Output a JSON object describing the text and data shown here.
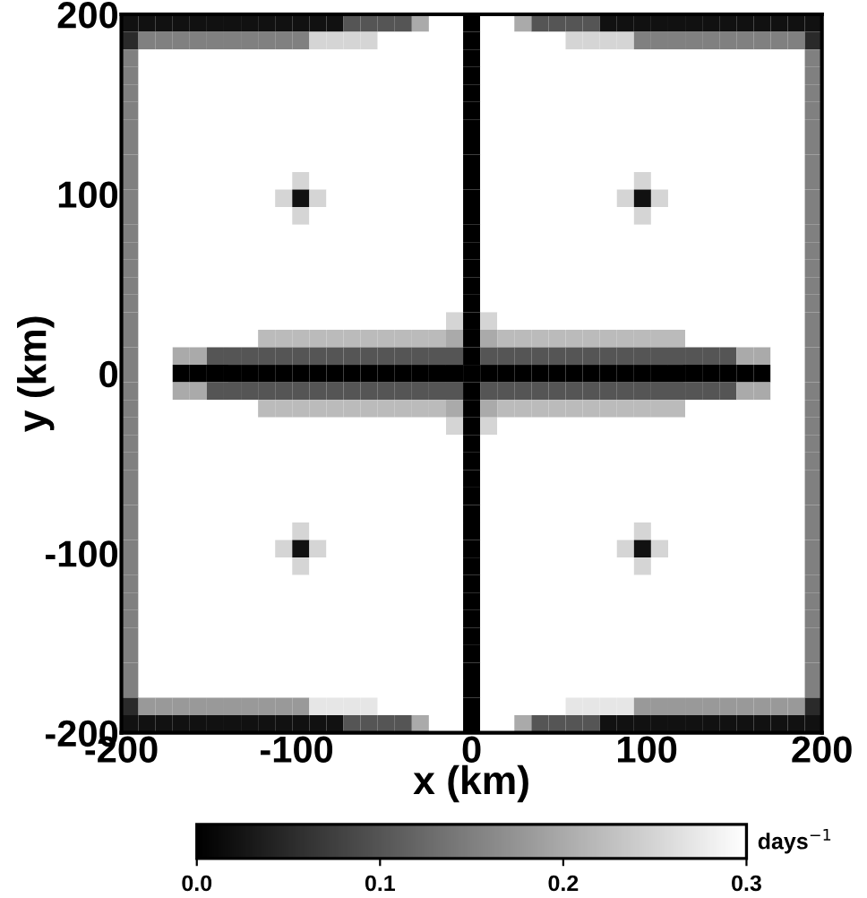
{
  "chart_data": {
    "type": "heatmap",
    "xlabel": "x (km)",
    "ylabel": "y (km)",
    "clabel": "days$^{−1}$",
    "xlim": [
      -200,
      200
    ],
    "ylim": [
      -200,
      200
    ],
    "xticks": [
      -200,
      -100,
      0,
      100,
      200
    ],
    "yticks": [
      -200,
      -100,
      0,
      100,
      200
    ],
    "clim": [
      0,
      0.3
    ],
    "cticks": [
      {
        "value": 0,
        "label": "0.0"
      },
      {
        "value": 0.1,
        "label": "0.1"
      },
      {
        "value": 0.2,
        "label": "0.2"
      },
      {
        "value": 0.3,
        "label": "0.3"
      }
    ],
    "cells": [
      [
        0.02,
        0.02,
        0.02,
        0.02,
        0.02,
        0.02,
        0.02,
        0.02,
        0.02,
        0.02,
        0.02,
        0.02,
        0.02,
        0.1,
        0.1,
        0.1,
        0.1,
        0.2,
        0.3,
        0.3,
        0,
        0.3,
        0.3,
        0.2,
        0.1,
        0.1,
        0.1,
        0.1,
        0.02,
        0.02,
        0.02,
        0.02,
        0.02,
        0.02,
        0.02,
        0.02,
        0.02,
        0.02,
        0.02,
        0.02,
        0.02
      ],
      [
        0.05,
        0.15,
        0.15,
        0.15,
        0.15,
        0.15,
        0.15,
        0.15,
        0.15,
        0.15,
        0.15,
        0.25,
        0.25,
        0.25,
        0.25,
        0.3,
        0.3,
        0.3,
        0.3,
        0.3,
        0,
        0.3,
        0.3,
        0.3,
        0.3,
        0.3,
        0.25,
        0.25,
        0.25,
        0.25,
        0.15,
        0.15,
        0.15,
        0.15,
        0.15,
        0.15,
        0.15,
        0.15,
        0.15,
        0.15,
        0.05
      ],
      [
        0.15,
        0.3,
        0.3,
        0.3,
        0.3,
        0.3,
        0.3,
        0.3,
        0.3,
        0.3,
        0.3,
        0.3,
        0.3,
        0.3,
        0.3,
        0.3,
        0.3,
        0.3,
        0.3,
        0.3,
        0,
        0.3,
        0.3,
        0.3,
        0.3,
        0.3,
        0.3,
        0.3,
        0.3,
        0.3,
        0.3,
        0.3,
        0.3,
        0.3,
        0.3,
        0.3,
        0.3,
        0.3,
        0.3,
        0.3,
        0.15
      ],
      [
        0.15,
        0.3,
        0.3,
        0.3,
        0.3,
        0.3,
        0.3,
        0.3,
        0.3,
        0.3,
        0.3,
        0.3,
        0.3,
        0.3,
        0.3,
        0.3,
        0.3,
        0.3,
        0.3,
        0.3,
        0,
        0.3,
        0.3,
        0.3,
        0.3,
        0.3,
        0.3,
        0.3,
        0.3,
        0.3,
        0.3,
        0.3,
        0.3,
        0.3,
        0.3,
        0.3,
        0.3,
        0.3,
        0.3,
        0.3,
        0.15
      ],
      [
        0.15,
        0.3,
        0.3,
        0.3,
        0.3,
        0.3,
        0.3,
        0.3,
        0.3,
        0.3,
        0.3,
        0.3,
        0.3,
        0.3,
        0.3,
        0.3,
        0.3,
        0.3,
        0.3,
        0.3,
        0,
        0.3,
        0.3,
        0.3,
        0.3,
        0.3,
        0.3,
        0.3,
        0.3,
        0.3,
        0.3,
        0.3,
        0.3,
        0.3,
        0.3,
        0.3,
        0.3,
        0.3,
        0.3,
        0.3,
        0.15
      ],
      [
        0.15,
        0.3,
        0.3,
        0.3,
        0.3,
        0.3,
        0.3,
        0.3,
        0.3,
        0.3,
        0.3,
        0.3,
        0.3,
        0.3,
        0.3,
        0.3,
        0.3,
        0.3,
        0.3,
        0.3,
        0,
        0.3,
        0.3,
        0.3,
        0.3,
        0.3,
        0.3,
        0.3,
        0.3,
        0.3,
        0.3,
        0.3,
        0.3,
        0.3,
        0.3,
        0.3,
        0.3,
        0.3,
        0.3,
        0.3,
        0.15
      ],
      [
        0.15,
        0.3,
        0.3,
        0.3,
        0.3,
        0.3,
        0.3,
        0.3,
        0.3,
        0.3,
        0.3,
        0.3,
        0.3,
        0.3,
        0.3,
        0.3,
        0.3,
        0.3,
        0.3,
        0.3,
        0,
        0.3,
        0.3,
        0.3,
        0.3,
        0.3,
        0.3,
        0.3,
        0.3,
        0.3,
        0.3,
        0.3,
        0.3,
        0.3,
        0.3,
        0.3,
        0.3,
        0.3,
        0.3,
        0.3,
        0.15
      ],
      [
        0.15,
        0.3,
        0.3,
        0.3,
        0.3,
        0.3,
        0.3,
        0.3,
        0.3,
        0.3,
        0.3,
        0.3,
        0.3,
        0.3,
        0.3,
        0.3,
        0.3,
        0.3,
        0.3,
        0.3,
        0,
        0.3,
        0.3,
        0.3,
        0.3,
        0.3,
        0.3,
        0.3,
        0.3,
        0.3,
        0.3,
        0.3,
        0.3,
        0.3,
        0.3,
        0.3,
        0.3,
        0.3,
        0.3,
        0.3,
        0.15
      ],
      [
        0.15,
        0.3,
        0.3,
        0.3,
        0.3,
        0.3,
        0.3,
        0.3,
        0.3,
        0.3,
        0.3,
        0.3,
        0.3,
        0.3,
        0.3,
        0.3,
        0.3,
        0.3,
        0.3,
        0.3,
        0,
        0.3,
        0.3,
        0.3,
        0.3,
        0.3,
        0.3,
        0.3,
        0.3,
        0.3,
        0.3,
        0.3,
        0.3,
        0.3,
        0.3,
        0.3,
        0.3,
        0.3,
        0.3,
        0.3,
        0.15
      ],
      [
        0.15,
        0.3,
        0.3,
        0.3,
        0.3,
        0.3,
        0.3,
        0.3,
        0.3,
        0.3,
        0.25,
        0.3,
        0.3,
        0.3,
        0.3,
        0.3,
        0.3,
        0.3,
        0.3,
        0.3,
        0,
        0.3,
        0.3,
        0.3,
        0.3,
        0.3,
        0.3,
        0.3,
        0.3,
        0.3,
        0.25,
        0.3,
        0.3,
        0.3,
        0.3,
        0.3,
        0.3,
        0.3,
        0.3,
        0.3,
        0.15
      ],
      [
        0.15,
        0.3,
        0.3,
        0.3,
        0.3,
        0.3,
        0.3,
        0.3,
        0.3,
        0.25,
        0.02,
        0.25,
        0.3,
        0.3,
        0.3,
        0.3,
        0.3,
        0.3,
        0.3,
        0.3,
        0,
        0.3,
        0.3,
        0.3,
        0.3,
        0.3,
        0.3,
        0.3,
        0.3,
        0.25,
        0.02,
        0.25,
        0.3,
        0.3,
        0.3,
        0.3,
        0.3,
        0.3,
        0.3,
        0.3,
        0.15
      ],
      [
        0.15,
        0.3,
        0.3,
        0.3,
        0.3,
        0.3,
        0.3,
        0.3,
        0.3,
        0.3,
        0.25,
        0.3,
        0.3,
        0.3,
        0.3,
        0.3,
        0.3,
        0.3,
        0.3,
        0.3,
        0,
        0.3,
        0.3,
        0.3,
        0.3,
        0.3,
        0.3,
        0.3,
        0.3,
        0.3,
        0.25,
        0.3,
        0.3,
        0.3,
        0.3,
        0.3,
        0.3,
        0.3,
        0.3,
        0.3,
        0.15
      ],
      [
        0.15,
        0.3,
        0.3,
        0.3,
        0.3,
        0.3,
        0.3,
        0.3,
        0.3,
        0.3,
        0.3,
        0.3,
        0.3,
        0.3,
        0.3,
        0.3,
        0.3,
        0.3,
        0.3,
        0.3,
        0,
        0.3,
        0.3,
        0.3,
        0.3,
        0.3,
        0.3,
        0.3,
        0.3,
        0.3,
        0.3,
        0.3,
        0.3,
        0.3,
        0.3,
        0.3,
        0.3,
        0.3,
        0.3,
        0.3,
        0.15
      ],
      [
        0.15,
        0.3,
        0.3,
        0.3,
        0.3,
        0.3,
        0.3,
        0.3,
        0.3,
        0.3,
        0.3,
        0.3,
        0.3,
        0.3,
        0.3,
        0.3,
        0.3,
        0.3,
        0.3,
        0.3,
        0,
        0.3,
        0.3,
        0.3,
        0.3,
        0.3,
        0.3,
        0.3,
        0.3,
        0.3,
        0.3,
        0.3,
        0.3,
        0.3,
        0.3,
        0.3,
        0.3,
        0.3,
        0.3,
        0.3,
        0.15
      ],
      [
        0.15,
        0.3,
        0.3,
        0.3,
        0.3,
        0.3,
        0.3,
        0.3,
        0.3,
        0.3,
        0.3,
        0.3,
        0.3,
        0.3,
        0.3,
        0.3,
        0.3,
        0.3,
        0.3,
        0.3,
        0,
        0.3,
        0.3,
        0.3,
        0.3,
        0.3,
        0.3,
        0.3,
        0.3,
        0.3,
        0.3,
        0.3,
        0.3,
        0.3,
        0.3,
        0.3,
        0.3,
        0.3,
        0.3,
        0.3,
        0.15
      ],
      [
        0.15,
        0.3,
        0.3,
        0.3,
        0.3,
        0.3,
        0.3,
        0.3,
        0.3,
        0.3,
        0.3,
        0.3,
        0.3,
        0.3,
        0.3,
        0.3,
        0.3,
        0.3,
        0.3,
        0.3,
        0,
        0.3,
        0.3,
        0.3,
        0.3,
        0.3,
        0.3,
        0.3,
        0.3,
        0.3,
        0.3,
        0.3,
        0.3,
        0.3,
        0.3,
        0.3,
        0.3,
        0.3,
        0.3,
        0.3,
        0.15
      ],
      [
        0.15,
        0.3,
        0.3,
        0.3,
        0.3,
        0.3,
        0.3,
        0.3,
        0.3,
        0.3,
        0.3,
        0.3,
        0.3,
        0.3,
        0.3,
        0.3,
        0.3,
        0.3,
        0.3,
        0.3,
        0,
        0.3,
        0.3,
        0.3,
        0.3,
        0.3,
        0.3,
        0.3,
        0.3,
        0.3,
        0.3,
        0.3,
        0.3,
        0.3,
        0.3,
        0.3,
        0.3,
        0.3,
        0.3,
        0.3,
        0.15
      ],
      [
        0.15,
        0.3,
        0.3,
        0.3,
        0.3,
        0.3,
        0.3,
        0.3,
        0.3,
        0.3,
        0.3,
        0.3,
        0.3,
        0.3,
        0.3,
        0.3,
        0.3,
        0.3,
        0.3,
        0.25,
        0,
        0.25,
        0.3,
        0.3,
        0.3,
        0.3,
        0.3,
        0.3,
        0.3,
        0.3,
        0.3,
        0.3,
        0.3,
        0.3,
        0.3,
        0.3,
        0.3,
        0.3,
        0.3,
        0.3,
        0.15
      ],
      [
        0.15,
        0.3,
        0.3,
        0.3,
        0.3,
        0.3,
        0.3,
        0.3,
        0.22,
        0.22,
        0.22,
        0.22,
        0.22,
        0.22,
        0.22,
        0.22,
        0.22,
        0.22,
        0.22,
        0.2,
        0,
        0.2,
        0.22,
        0.22,
        0.22,
        0.22,
        0.22,
        0.22,
        0.22,
        0.22,
        0.22,
        0.22,
        0.22,
        0.3,
        0.3,
        0.3,
        0.3,
        0.3,
        0.3,
        0.3,
        0.15
      ],
      [
        0.15,
        0.3,
        0.3,
        0.2,
        0.2,
        0.1,
        0.1,
        0.1,
        0.1,
        0.1,
        0.1,
        0.1,
        0.1,
        0.1,
        0.1,
        0.1,
        0.1,
        0.1,
        0.1,
        0.1,
        0,
        0.1,
        0.1,
        0.1,
        0.1,
        0.1,
        0.1,
        0.1,
        0.1,
        0.1,
        0.1,
        0.1,
        0.1,
        0.1,
        0.1,
        0.1,
        0.2,
        0.2,
        0.3,
        0.3,
        0.15
      ],
      [
        0.15,
        0.3,
        0.3,
        0,
        0,
        0,
        0,
        0,
        0,
        0,
        0,
        0,
        0,
        0,
        0,
        0,
        0,
        0,
        0,
        0,
        0,
        0,
        0,
        0,
        0,
        0,
        0,
        0,
        0,
        0,
        0,
        0,
        0,
        0,
        0,
        0,
        0,
        0,
        0.3,
        0.3,
        0.15
      ],
      [
        0.15,
        0.3,
        0.3,
        0.2,
        0.2,
        0.1,
        0.1,
        0.1,
        0.1,
        0.1,
        0.1,
        0.1,
        0.1,
        0.1,
        0.1,
        0.1,
        0.1,
        0.1,
        0.1,
        0.1,
        0,
        0.1,
        0.1,
        0.1,
        0.1,
        0.1,
        0.1,
        0.1,
        0.1,
        0.1,
        0.1,
        0.1,
        0.1,
        0.1,
        0.1,
        0.1,
        0.2,
        0.2,
        0.3,
        0.3,
        0.15
      ],
      [
        0.15,
        0.3,
        0.3,
        0.3,
        0.3,
        0.3,
        0.3,
        0.3,
        0.22,
        0.22,
        0.22,
        0.22,
        0.22,
        0.22,
        0.22,
        0.22,
        0.22,
        0.22,
        0.22,
        0.2,
        0,
        0.2,
        0.22,
        0.22,
        0.22,
        0.22,
        0.22,
        0.22,
        0.22,
        0.22,
        0.22,
        0.22,
        0.22,
        0.3,
        0.3,
        0.3,
        0.3,
        0.3,
        0.3,
        0.3,
        0.15
      ],
      [
        0.15,
        0.3,
        0.3,
        0.3,
        0.3,
        0.3,
        0.3,
        0.3,
        0.3,
        0.3,
        0.3,
        0.3,
        0.3,
        0.3,
        0.3,
        0.3,
        0.3,
        0.3,
        0.3,
        0.25,
        0,
        0.25,
        0.3,
        0.3,
        0.3,
        0.3,
        0.3,
        0.3,
        0.3,
        0.3,
        0.3,
        0.3,
        0.3,
        0.3,
        0.3,
        0.3,
        0.3,
        0.3,
        0.3,
        0.3,
        0.15
      ],
      [
        0.15,
        0.3,
        0.3,
        0.3,
        0.3,
        0.3,
        0.3,
        0.3,
        0.3,
        0.3,
        0.3,
        0.3,
        0.3,
        0.3,
        0.3,
        0.3,
        0.3,
        0.3,
        0.3,
        0.3,
        0,
        0.3,
        0.3,
        0.3,
        0.3,
        0.3,
        0.3,
        0.3,
        0.3,
        0.3,
        0.3,
        0.3,
        0.3,
        0.3,
        0.3,
        0.3,
        0.3,
        0.3,
        0.3,
        0.3,
        0.15
      ],
      [
        0.15,
        0.3,
        0.3,
        0.3,
        0.3,
        0.3,
        0.3,
        0.3,
        0.3,
        0.3,
        0.3,
        0.3,
        0.3,
        0.3,
        0.3,
        0.3,
        0.3,
        0.3,
        0.3,
        0.3,
        0,
        0.3,
        0.3,
        0.3,
        0.3,
        0.3,
        0.3,
        0.3,
        0.3,
        0.3,
        0.3,
        0.3,
        0.3,
        0.3,
        0.3,
        0.3,
        0.3,
        0.3,
        0.3,
        0.3,
        0.15
      ],
      [
        0.15,
        0.3,
        0.3,
        0.3,
        0.3,
        0.3,
        0.3,
        0.3,
        0.3,
        0.3,
        0.3,
        0.3,
        0.3,
        0.3,
        0.3,
        0.3,
        0.3,
        0.3,
        0.3,
        0.3,
        0,
        0.3,
        0.3,
        0.3,
        0.3,
        0.3,
        0.3,
        0.3,
        0.3,
        0.3,
        0.3,
        0.3,
        0.3,
        0.3,
        0.3,
        0.3,
        0.3,
        0.3,
        0.3,
        0.3,
        0.15
      ],
      [
        0.15,
        0.3,
        0.3,
        0.3,
        0.3,
        0.3,
        0.3,
        0.3,
        0.3,
        0.3,
        0.3,
        0.3,
        0.3,
        0.3,
        0.3,
        0.3,
        0.3,
        0.3,
        0.3,
        0.3,
        0,
        0.3,
        0.3,
        0.3,
        0.3,
        0.3,
        0.3,
        0.3,
        0.3,
        0.3,
        0.3,
        0.3,
        0.3,
        0.3,
        0.3,
        0.3,
        0.3,
        0.3,
        0.3,
        0.3,
        0.15
      ],
      [
        0.15,
        0.3,
        0.3,
        0.3,
        0.3,
        0.3,
        0.3,
        0.3,
        0.3,
        0.3,
        0.3,
        0.3,
        0.3,
        0.3,
        0.3,
        0.3,
        0.3,
        0.3,
        0.3,
        0.3,
        0,
        0.3,
        0.3,
        0.3,
        0.3,
        0.3,
        0.3,
        0.3,
        0.3,
        0.3,
        0.3,
        0.3,
        0.3,
        0.3,
        0.3,
        0.3,
        0.3,
        0.3,
        0.3,
        0.3,
        0.15
      ],
      [
        0.15,
        0.3,
        0.3,
        0.3,
        0.3,
        0.3,
        0.3,
        0.3,
        0.3,
        0.3,
        0.25,
        0.3,
        0.3,
        0.3,
        0.3,
        0.3,
        0.3,
        0.3,
        0.3,
        0.3,
        0,
        0.3,
        0.3,
        0.3,
        0.3,
        0.3,
        0.3,
        0.3,
        0.3,
        0.3,
        0.25,
        0.3,
        0.3,
        0.3,
        0.3,
        0.3,
        0.3,
        0.3,
        0.3,
        0.3,
        0.15
      ],
      [
        0.15,
        0.3,
        0.3,
        0.3,
        0.3,
        0.3,
        0.3,
        0.3,
        0.3,
        0.25,
        0.02,
        0.25,
        0.3,
        0.3,
        0.3,
        0.3,
        0.3,
        0.3,
        0.3,
        0.3,
        0,
        0.3,
        0.3,
        0.3,
        0.3,
        0.3,
        0.3,
        0.3,
        0.3,
        0.25,
        0.02,
        0.25,
        0.3,
        0.3,
        0.3,
        0.3,
        0.3,
        0.3,
        0.3,
        0.3,
        0.15
      ],
      [
        0.15,
        0.3,
        0.3,
        0.3,
        0.3,
        0.3,
        0.3,
        0.3,
        0.3,
        0.3,
        0.25,
        0.3,
        0.3,
        0.3,
        0.3,
        0.3,
        0.3,
        0.3,
        0.3,
        0.3,
        0,
        0.3,
        0.3,
        0.3,
        0.3,
        0.3,
        0.3,
        0.3,
        0.3,
        0.3,
        0.25,
        0.3,
        0.3,
        0.3,
        0.3,
        0.3,
        0.3,
        0.3,
        0.3,
        0.3,
        0.15
      ],
      [
        0.15,
        0.3,
        0.3,
        0.3,
        0.3,
        0.3,
        0.3,
        0.3,
        0.3,
        0.3,
        0.3,
        0.3,
        0.3,
        0.3,
        0.3,
        0.3,
        0.3,
        0.3,
        0.3,
        0.3,
        0,
        0.3,
        0.3,
        0.3,
        0.3,
        0.3,
        0.3,
        0.3,
        0.3,
        0.3,
        0.3,
        0.3,
        0.3,
        0.3,
        0.3,
        0.3,
        0.3,
        0.3,
        0.3,
        0.3,
        0.15
      ],
      [
        0.15,
        0.3,
        0.3,
        0.3,
        0.3,
        0.3,
        0.3,
        0.3,
        0.3,
        0.3,
        0.3,
        0.3,
        0.3,
        0.3,
        0.3,
        0.3,
        0.3,
        0.3,
        0.3,
        0.3,
        0,
        0.3,
        0.3,
        0.3,
        0.3,
        0.3,
        0.3,
        0.3,
        0.3,
        0.3,
        0.3,
        0.3,
        0.3,
        0.3,
        0.3,
        0.3,
        0.3,
        0.3,
        0.3,
        0.3,
        0.15
      ],
      [
        0.15,
        0.3,
        0.3,
        0.3,
        0.3,
        0.3,
        0.3,
        0.3,
        0.3,
        0.3,
        0.3,
        0.3,
        0.3,
        0.3,
        0.3,
        0.3,
        0.3,
        0.3,
        0.3,
        0.3,
        0,
        0.3,
        0.3,
        0.3,
        0.3,
        0.3,
        0.3,
        0.3,
        0.3,
        0.3,
        0.3,
        0.3,
        0.3,
        0.3,
        0.3,
        0.3,
        0.3,
        0.3,
        0.3,
        0.3,
        0.15
      ],
      [
        0.15,
        0.3,
        0.3,
        0.3,
        0.3,
        0.3,
        0.3,
        0.3,
        0.3,
        0.3,
        0.3,
        0.3,
        0.3,
        0.3,
        0.3,
        0.3,
        0.3,
        0.3,
        0.3,
        0.3,
        0,
        0.3,
        0.3,
        0.3,
        0.3,
        0.3,
        0.3,
        0.3,
        0.3,
        0.3,
        0.3,
        0.3,
        0.3,
        0.3,
        0.3,
        0.3,
        0.3,
        0.3,
        0.3,
        0.3,
        0.15
      ],
      [
        0.15,
        0.3,
        0.3,
        0.3,
        0.3,
        0.3,
        0.3,
        0.3,
        0.3,
        0.3,
        0.3,
        0.3,
        0.3,
        0.3,
        0.3,
        0.3,
        0.3,
        0.3,
        0.3,
        0.3,
        0,
        0.3,
        0.3,
        0.3,
        0.3,
        0.3,
        0.3,
        0.3,
        0.3,
        0.3,
        0.3,
        0.3,
        0.3,
        0.3,
        0.3,
        0.3,
        0.3,
        0.3,
        0.3,
        0.3,
        0.15
      ],
      [
        0.15,
        0.3,
        0.3,
        0.3,
        0.3,
        0.3,
        0.3,
        0.3,
        0.3,
        0.3,
        0.3,
        0.3,
        0.3,
        0.3,
        0.3,
        0.3,
        0.3,
        0.3,
        0.3,
        0.3,
        0,
        0.3,
        0.3,
        0.3,
        0.3,
        0.3,
        0.3,
        0.3,
        0.3,
        0.3,
        0.3,
        0.3,
        0.3,
        0.3,
        0.3,
        0.3,
        0.3,
        0.3,
        0.3,
        0.3,
        0.15
      ],
      [
        0.15,
        0.3,
        0.3,
        0.3,
        0.3,
        0.3,
        0.3,
        0.3,
        0.3,
        0.3,
        0.3,
        0.3,
        0.3,
        0.3,
        0.3,
        0.3,
        0.3,
        0.3,
        0.3,
        0.3,
        0,
        0.3,
        0.3,
        0.3,
        0.3,
        0.3,
        0.3,
        0.3,
        0.3,
        0.3,
        0.3,
        0.3,
        0.3,
        0.3,
        0.3,
        0.3,
        0.3,
        0.3,
        0.3,
        0.3,
        0.15
      ],
      [
        0.05,
        0.18,
        0.18,
        0.18,
        0.18,
        0.18,
        0.18,
        0.18,
        0.18,
        0.18,
        0.18,
        0.27,
        0.27,
        0.27,
        0.27,
        0.3,
        0.3,
        0.3,
        0.3,
        0.3,
        0,
        0.3,
        0.3,
        0.3,
        0.3,
        0.3,
        0.27,
        0.27,
        0.27,
        0.27,
        0.18,
        0.18,
        0.18,
        0.18,
        0.18,
        0.18,
        0.18,
        0.18,
        0.18,
        0.18,
        0.05
      ],
      [
        0.02,
        0.02,
        0.02,
        0.02,
        0.02,
        0.02,
        0.02,
        0.02,
        0.02,
        0.02,
        0.02,
        0.02,
        0.02,
        0.1,
        0.1,
        0.1,
        0.1,
        0.2,
        0.3,
        0.3,
        0,
        0.3,
        0.3,
        0.2,
        0.1,
        0.1,
        0.1,
        0.1,
        0.02,
        0.02,
        0.02,
        0.02,
        0.02,
        0.02,
        0.02,
        0.02,
        0.02,
        0.02,
        0.02,
        0.02,
        0.02
      ]
    ]
  }
}
